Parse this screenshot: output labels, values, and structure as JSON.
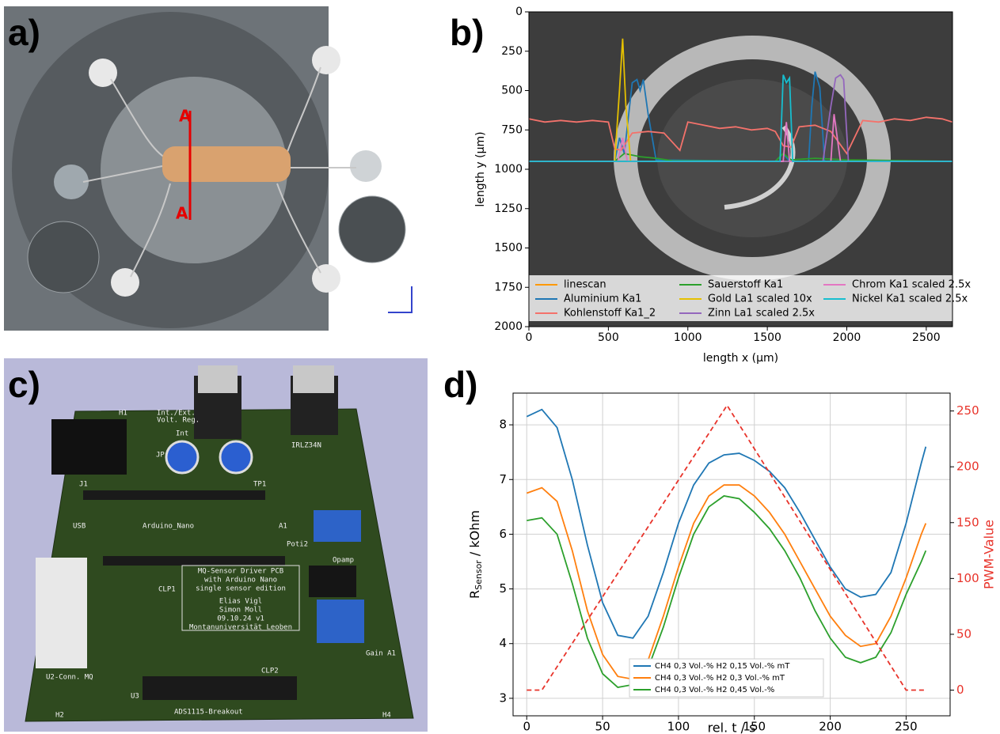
{
  "panel_labels": [
    "a)",
    "b)",
    "c)",
    "d)"
  ],
  "photo_a": {
    "section_marks": [
      "A",
      "A"
    ]
  },
  "pcb_c": {
    "labels": [
      "H1",
      "J1",
      "JP",
      "Int",
      "Int./Ext.",
      "Volt. Reg.",
      "TP1",
      "IRLZ34N",
      "USB",
      "Arduino_Nano",
      "A1",
      "Poti2",
      "Opamp",
      "CLP1",
      "CLP2",
      "U2-Conn. MQ",
      "U3",
      "ADS1115-Breakout",
      "H2",
      "H4",
      "Gain A1"
    ],
    "info_block": [
      "MQ-Sensor Driver PCB",
      "with Arduino Nano",
      "single sensor edition",
      "Elias Vigl",
      "Simon Moll",
      "09.10.24 v1",
      "Montanuniversität Leoben"
    ]
  },
  "chart_data": [
    {
      "type": "line",
      "x_label": "length x (µm)",
      "y_label": "length y (µm)",
      "xlim": [
        0,
        2665
      ],
      "ylim": [
        2000,
        0
      ],
      "xticks": [
        0,
        500,
        1000,
        1500,
        2000,
        2500
      ],
      "yticks": [
        0,
        250,
        500,
        750,
        1000,
        1250,
        1500,
        1750,
        2000
      ],
      "grid": false,
      "legend": "lower center",
      "series": [
        {
          "name": "linescan",
          "color": "#ff9900",
          "x": [
            0,
            2665
          ],
          "values": [
            950,
            950
          ]
        },
        {
          "name": "Aluminium Ka1",
          "color": "#1f77b4",
          "x": [
            0,
            540,
            570,
            600,
            650,
            680,
            700,
            720,
            750,
            800,
            1550,
            1600,
            1640,
            1760,
            1780,
            1800,
            1830,
            1860,
            2665
          ],
          "values": [
            950,
            950,
            800,
            900,
            450,
            430,
            500,
            430,
            650,
            940,
            950,
            900,
            950,
            950,
            600,
            380,
            480,
            950,
            950
          ]
        },
        {
          "name": "Kohlenstoff Ka1_2",
          "color": "#f4726b",
          "x": [
            0,
            100,
            200,
            300,
            400,
            500,
            540,
            580,
            650,
            750,
            850,
            950,
            1000,
            1100,
            1200,
            1300,
            1400,
            1500,
            1550,
            1600,
            1650,
            1700,
            1800,
            1900,
            2000,
            2100,
            2200,
            2300,
            2400,
            2500,
            2600,
            2665
          ],
          "values": [
            680,
            700,
            690,
            700,
            690,
            700,
            870,
            880,
            770,
            760,
            770,
            880,
            700,
            720,
            740,
            730,
            750,
            740,
            760,
            850,
            860,
            730,
            720,
            760,
            900,
            690,
            700,
            680,
            690,
            670,
            680,
            700
          ]
        },
        {
          "name": "Sauerstoff Ka1",
          "color": "#2ca02c",
          "x": [
            0,
            540,
            600,
            700,
            800,
            900,
            1550,
            1600,
            1650,
            1800,
            2000,
            2665
          ],
          "values": [
            950,
            950,
            900,
            920,
            930,
            945,
            950,
            900,
            940,
            930,
            940,
            950
          ]
        },
        {
          "name": "Gold La1 scaled 10x",
          "color": "#e5c000",
          "x": [
            0,
            540,
            570,
            590,
            610,
            640,
            2665
          ],
          "values": [
            950,
            950,
            500,
            170,
            600,
            950,
            950
          ]
        },
        {
          "name": "Zinn La1 scaled 2.5x",
          "color": "#9467bd",
          "x": [
            0,
            1850,
            1900,
            1930,
            1960,
            1980,
            2010,
            2665
          ],
          "values": [
            950,
            950,
            600,
            420,
            400,
            430,
            950,
            950
          ]
        },
        {
          "name": "Chrom Ka1 scaled 2.5x",
          "color": "#e377c2",
          "x": [
            0,
            560,
            590,
            620,
            1600,
            1620,
            1640,
            1900,
            1920,
            1960,
            2665
          ],
          "values": [
            950,
            950,
            800,
            950,
            950,
            700,
            950,
            950,
            650,
            950,
            950
          ]
        },
        {
          "name": "Nickel Ka1 scaled 2.5x",
          "color": "#17becf",
          "x": [
            0,
            1580,
            1600,
            1620,
            1640,
            1660,
            2665
          ],
          "values": [
            950,
            950,
            400,
            450,
            420,
            950,
            950
          ]
        }
      ]
    },
    {
      "type": "line",
      "x_label": "rel. t / s",
      "y_label": "R",
      "y_label_sub": "Sensor",
      "y_label_unit": " / kOhm",
      "y2_label": "PWM-Value",
      "y2_color": "#e8332a",
      "xlim": [
        -9,
        279
      ],
      "ylim": [
        2.68,
        8.58
      ],
      "y2lim": [
        -23,
        266
      ],
      "xticks": [
        0,
        50,
        100,
        150,
        200,
        250
      ],
      "yticks": [
        3,
        4,
        5,
        6,
        7,
        8
      ],
      "y2ticks": [
        0,
        50,
        100,
        150,
        200,
        250
      ],
      "grid": true,
      "legend": "lower center",
      "x": [
        0,
        10,
        20,
        30,
        40,
        50,
        60,
        70,
        80,
        90,
        100,
        110,
        120,
        130,
        140,
        150,
        160,
        170,
        180,
        190,
        200,
        210,
        220,
        230,
        240,
        250,
        260,
        263
      ],
      "series": [
        {
          "name": "CH4 0,3 Vol.-% H2 0,15 Vol.-% mT",
          "color": "#1f77b4",
          "values": [
            8.15,
            8.28,
            7.95,
            7.0,
            5.8,
            4.75,
            4.15,
            4.1,
            4.5,
            5.3,
            6.2,
            6.9,
            7.3,
            7.45,
            7.48,
            7.35,
            7.15,
            6.85,
            6.4,
            5.9,
            5.4,
            5.0,
            4.85,
            4.9,
            5.3,
            6.2,
            7.3,
            7.6
          ]
        },
        {
          "name": "CH4 0,3 Vol.-% H2 0,3 Vol.-% mT",
          "color": "#ff7f0e",
          "values": [
            6.75,
            6.85,
            6.6,
            5.7,
            4.6,
            3.8,
            3.4,
            3.35,
            3.7,
            4.5,
            5.4,
            6.2,
            6.7,
            6.9,
            6.9,
            6.7,
            6.4,
            6.0,
            5.5,
            5.0,
            4.5,
            4.15,
            3.95,
            4.0,
            4.5,
            5.2,
            6.0,
            6.2
          ]
        },
        {
          "name": "CH4 0,3 Vol.-% H2 0,45 Vol.-%",
          "color": "#2ca02c",
          "values": [
            6.25,
            6.3,
            6.0,
            5.1,
            4.1,
            3.45,
            3.2,
            3.25,
            3.55,
            4.3,
            5.2,
            6.0,
            6.5,
            6.7,
            6.65,
            6.4,
            6.1,
            5.7,
            5.2,
            4.6,
            4.1,
            3.75,
            3.65,
            3.75,
            4.2,
            4.9,
            5.5,
            5.7
          ]
        },
        {
          "color": "#e8332a",
          "axis": "y2",
          "linestyle": "dashed",
          "x": [
            0,
            10,
            132,
            250,
            262
          ],
          "values": [
            0,
            0,
            255,
            0,
            0
          ]
        }
      ]
    }
  ]
}
